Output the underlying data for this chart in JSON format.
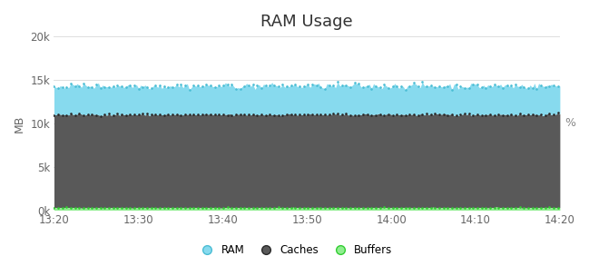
{
  "title": "RAM Usage",
  "ylabel_left": "MB",
  "ylabel_right": "%",
  "x_start_minutes": 0,
  "x_end_minutes": 60,
  "x_tick_minutes": [
    0,
    10,
    20,
    30,
    40,
    50,
    60
  ],
  "x_tick_labels": [
    "13:20",
    "13:30",
    "13:40",
    "13:50",
    "14:00",
    "14:10",
    "14:20"
  ],
  "ylim": [
    0,
    20000
  ],
  "yticks": [
    0,
    5000,
    10000,
    15000,
    20000
  ],
  "ytick_labels": [
    "0k",
    "5k",
    "10k",
    "15k",
    "20k"
  ],
  "n_points": 240,
  "buffers_base": 280,
  "buffers_noise": 25,
  "caches_base": 11000,
  "caches_noise": 60,
  "ram_base": 14300,
  "ram_noise": 180,
  "color_ram": "#87DAEE",
  "color_caches": "#595959",
  "color_buffers": "#90EE90",
  "color_ram_line": "#4BBDD4",
  "color_caches_line": "#2a2a2a",
  "color_buffers_line": "#32CD32",
  "legend_labels": [
    "RAM",
    "Caches",
    "Buffers"
  ],
  "background_color": "#ffffff",
  "grid_color": "#d8d8d8",
  "title_fontsize": 13,
  "label_fontsize": 9,
  "tick_fontsize": 8.5
}
